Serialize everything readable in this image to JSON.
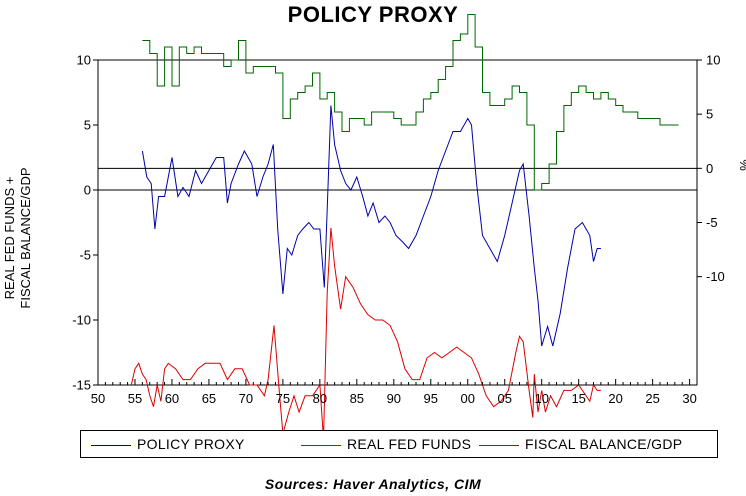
{
  "chart_data": {
    "type": "line",
    "title": "POLICY PROXY",
    "left_axis": {
      "label_lines": [
        "REAL FED FUNDS +",
        "FISCAL BALANCE/GDP"
      ],
      "range": [
        -15,
        10
      ],
      "ticks": [
        {
          "value": 10,
          "label": "10"
        },
        {
          "value": 5,
          "label": "5"
        },
        {
          "value": 0,
          "label": "0"
        },
        {
          "value": -5,
          "label": "-5"
        },
        {
          "value": -10,
          "label": "-10"
        },
        {
          "value": -15,
          "label": "-15"
        }
      ]
    },
    "right_axis": {
      "label": "%",
      "range": [
        -20,
        10
      ],
      "ticks": [
        {
          "value": 10,
          "label": "10"
        },
        {
          "value": 5,
          "label": "5"
        },
        {
          "value": 0,
          "label": "0"
        },
        {
          "value": -5,
          "label": "-5"
        },
        {
          "value": -10,
          "label": "-10"
        }
      ]
    },
    "x_axis": {
      "range": [
        1950,
        2031
      ],
      "ticks": [
        {
          "value": 1950,
          "label": "50"
        },
        {
          "value": 1955,
          "label": "55"
        },
        {
          "value": 1960,
          "label": "60"
        },
        {
          "value": 1965,
          "label": "65"
        },
        {
          "value": 1970,
          "label": "70"
        },
        {
          "value": 1975,
          "label": "75"
        },
        {
          "value": 1980,
          "label": "80"
        },
        {
          "value": 1985,
          "label": "85"
        },
        {
          "value": 1990,
          "label": "90"
        },
        {
          "value": 1995,
          "label": "95"
        },
        {
          "value": 2000,
          "label": "00"
        },
        {
          "value": 2005,
          "label": "05"
        },
        {
          "value": 2010,
          "label": "10"
        },
        {
          "value": 2015,
          "label": "15"
        },
        {
          "value": 2020,
          "label": "20"
        },
        {
          "value": 2025,
          "label": "25"
        },
        {
          "value": 2030,
          "label": "30"
        }
      ]
    },
    "series": [
      {
        "name": "POLICY PROXY",
        "axis": "left",
        "color": "#0000aa",
        "points": [
          [
            1956.0,
            3.0
          ],
          [
            1956.6,
            1.0
          ],
          [
            1957.2,
            0.5
          ],
          [
            1957.7,
            -3.0
          ],
          [
            1958.2,
            -0.5
          ],
          [
            1959.0,
            -0.5
          ],
          [
            1960.0,
            2.5
          ],
          [
            1960.8,
            -0.5
          ],
          [
            1961.5,
            0.2
          ],
          [
            1962.3,
            -0.5
          ],
          [
            1963.2,
            1.5
          ],
          [
            1964.0,
            0.5
          ],
          [
            1965.0,
            1.5
          ],
          [
            1966.0,
            2.5
          ],
          [
            1967.0,
            2.5
          ],
          [
            1967.5,
            -1.0
          ],
          [
            1968.0,
            0.5
          ],
          [
            1969.0,
            2.0
          ],
          [
            1969.8,
            3.0
          ],
          [
            1970.8,
            2.0
          ],
          [
            1971.5,
            -0.5
          ],
          [
            1972.3,
            1.0
          ],
          [
            1973.0,
            2.0
          ],
          [
            1973.7,
            3.5
          ],
          [
            1974.3,
            -3.0
          ],
          [
            1975.0,
            -8.0
          ],
          [
            1975.6,
            -4.5
          ],
          [
            1976.2,
            -5.0
          ],
          [
            1977.0,
            -3.5
          ],
          [
            1977.7,
            -3.0
          ],
          [
            1978.5,
            -2.5
          ],
          [
            1979.2,
            -3.0
          ],
          [
            1980.0,
            -3.0
          ],
          [
            1980.6,
            -7.5
          ],
          [
            1981.0,
            -1.5
          ],
          [
            1981.5,
            6.5
          ],
          [
            1982.0,
            3.5
          ],
          [
            1982.8,
            1.5
          ],
          [
            1983.5,
            0.5
          ],
          [
            1984.2,
            0.0
          ],
          [
            1985.0,
            1.0
          ],
          [
            1985.8,
            -0.5
          ],
          [
            1986.5,
            -2.0
          ],
          [
            1987.2,
            -1.0
          ],
          [
            1988.0,
            -2.5
          ],
          [
            1988.8,
            -2.0
          ],
          [
            1989.5,
            -2.5
          ],
          [
            1990.3,
            -3.5
          ],
          [
            1991.2,
            -4.0
          ],
          [
            1992.0,
            -4.5
          ],
          [
            1993.0,
            -3.5
          ],
          [
            1994.0,
            -2.0
          ],
          [
            1995.0,
            -0.5
          ],
          [
            1996.0,
            1.5
          ],
          [
            1997.0,
            3.0
          ],
          [
            1998.0,
            4.5
          ],
          [
            1999.0,
            4.5
          ],
          [
            2000.0,
            5.5
          ],
          [
            2000.5,
            5.0
          ],
          [
            2001.2,
            0.5
          ],
          [
            2002.0,
            -3.5
          ],
          [
            2003.0,
            -4.5
          ],
          [
            2004.0,
            -5.5
          ],
          [
            2005.0,
            -3.5
          ],
          [
            2006.0,
            -1.0
          ],
          [
            2007.0,
            1.5
          ],
          [
            2007.5,
            2.0
          ],
          [
            2008.3,
            -2.0
          ],
          [
            2009.0,
            -6.0
          ],
          [
            2009.5,
            -8.5
          ],
          [
            2010.0,
            -12.0
          ],
          [
            2010.8,
            -10.5
          ],
          [
            2011.5,
            -12.0
          ],
          [
            2012.5,
            -9.5
          ],
          [
            2013.5,
            -6.0
          ],
          [
            2014.5,
            -3.0
          ],
          [
            2015.5,
            -2.5
          ],
          [
            2016.5,
            -3.5
          ],
          [
            2017.0,
            -5.5
          ],
          [
            2017.5,
            -4.5
          ],
          [
            2018.0,
            -4.5
          ]
        ]
      },
      {
        "name": "REAL FED FUNDS",
        "axis": "right",
        "color": "#dd0000",
        "points": [
          [
            1954.5,
            -20.0
          ],
          [
            1955.0,
            -18.5
          ],
          [
            1955.5,
            -18.0
          ],
          [
            1956.0,
            -19.0
          ],
          [
            1956.5,
            -19.5
          ],
          [
            1957.0,
            -21.0
          ],
          [
            1957.5,
            -22.0
          ],
          [
            1958.0,
            -20.0
          ],
          [
            1958.5,
            -21.5
          ],
          [
            1959.0,
            -18.5
          ],
          [
            1959.5,
            -18.0
          ],
          [
            1960.5,
            -18.5
          ],
          [
            1961.5,
            -19.5
          ],
          [
            1962.5,
            -19.5
          ],
          [
            1963.5,
            -18.5
          ],
          [
            1964.5,
            -18.0
          ],
          [
            1965.5,
            -18.0
          ],
          [
            1966.5,
            -18.0
          ],
          [
            1967.5,
            -19.5
          ],
          [
            1968.5,
            -18.5
          ],
          [
            1969.5,
            -18.5
          ],
          [
            1970.5,
            -20.0
          ],
          [
            1971.5,
            -20.0
          ],
          [
            1972.5,
            -21.0
          ],
          [
            1973.0,
            -19.5
          ],
          [
            1973.8,
            -14.5
          ],
          [
            1974.5,
            -20.5
          ],
          [
            1975.0,
            -24.5
          ],
          [
            1975.8,
            -22.5
          ],
          [
            1976.5,
            -21.0
          ],
          [
            1977.2,
            -22.5
          ],
          [
            1978.0,
            -21.0
          ],
          [
            1979.0,
            -21.0
          ],
          [
            1980.0,
            -20.0
          ],
          [
            1980.5,
            -25.0
          ],
          [
            1981.0,
            -11.5
          ],
          [
            1981.5,
            -5.5
          ],
          [
            1982.0,
            -9.0
          ],
          [
            1982.8,
            -13.0
          ],
          [
            1983.5,
            -10.0
          ],
          [
            1984.5,
            -11.0
          ],
          [
            1985.5,
            -12.5
          ],
          [
            1986.5,
            -13.5
          ],
          [
            1987.5,
            -14.0
          ],
          [
            1988.5,
            -14.0
          ],
          [
            1989.5,
            -14.5
          ],
          [
            1990.5,
            -16.0
          ],
          [
            1991.5,
            -18.5
          ],
          [
            1992.5,
            -19.5
          ],
          [
            1993.5,
            -19.5
          ],
          [
            1994.5,
            -17.5
          ],
          [
            1995.5,
            -17.0
          ],
          [
            1996.5,
            -17.5
          ],
          [
            1997.5,
            -17.0
          ],
          [
            1998.5,
            -16.5
          ],
          [
            1999.5,
            -17.0
          ],
          [
            2000.5,
            -17.5
          ],
          [
            2001.5,
            -19.0
          ],
          [
            2002.5,
            -21.0
          ],
          [
            2003.5,
            -22.0
          ],
          [
            2004.5,
            -21.5
          ],
          [
            2005.5,
            -20.5
          ],
          [
            2006.5,
            -17.0
          ],
          [
            2007.0,
            -15.5
          ],
          [
            2007.5,
            -16.0
          ],
          [
            2008.3,
            -20.5
          ],
          [
            2008.8,
            -23.0
          ],
          [
            2009.0,
            -19.0
          ],
          [
            2009.5,
            -22.5
          ],
          [
            2010.0,
            -20.5
          ],
          [
            2010.5,
            -22.5
          ],
          [
            2011.2,
            -21.0
          ],
          [
            2012.0,
            -22.0
          ],
          [
            2013.0,
            -20.5
          ],
          [
            2014.0,
            -20.5
          ],
          [
            2015.0,
            -20.0
          ],
          [
            2015.5,
            -20.5
          ],
          [
            2016.5,
            -21.5
          ],
          [
            2017.0,
            -20.0
          ],
          [
            2017.5,
            -20.5
          ],
          [
            2018.0,
            -20.5
          ]
        ]
      },
      {
        "name": "FISCAL BALANCE/GDP",
        "axis": "left",
        "color": "#006600",
        "steps": [
          [
            1956,
            11.5
          ],
          [
            1957,
            10.5
          ],
          [
            1958,
            8.0
          ],
          [
            1959,
            11.0
          ],
          [
            1960,
            8.0
          ],
          [
            1961,
            11.0
          ],
          [
            1962,
            10.5
          ],
          [
            1963,
            11.0
          ],
          [
            1964,
            10.5
          ],
          [
            1965,
            10.5
          ],
          [
            1966,
            10.5
          ],
          [
            1967,
            9.5
          ],
          [
            1968,
            10.0
          ],
          [
            1969,
            11.5
          ],
          [
            1970,
            9.0
          ],
          [
            1971,
            9.5
          ],
          [
            1972,
            9.5
          ],
          [
            1973,
            9.5
          ],
          [
            1974,
            9.0
          ],
          [
            1975,
            5.5
          ],
          [
            1976,
            7.0
          ],
          [
            1977,
            7.5
          ],
          [
            1978,
            8.0
          ],
          [
            1979,
            9.0
          ],
          [
            1980,
            7.0
          ],
          [
            1981,
            7.5
          ],
          [
            1982,
            6.0
          ],
          [
            1983,
            4.5
          ],
          [
            1984,
            5.5
          ],
          [
            1985,
            5.5
          ],
          [
            1986,
            5.0
          ],
          [
            1987,
            6.0
          ],
          [
            1988,
            6.0
          ],
          [
            1989,
            6.0
          ],
          [
            1990,
            5.5
          ],
          [
            1991,
            5.0
          ],
          [
            1992,
            5.0
          ],
          [
            1993,
            6.0
          ],
          [
            1994,
            7.0
          ],
          [
            1995,
            7.5
          ],
          [
            1996,
            8.5
          ],
          [
            1997,
            9.5
          ],
          [
            1998,
            11.5
          ],
          [
            1999,
            12.0
          ],
          [
            2000,
            13.5
          ],
          [
            2001,
            11.0
          ],
          [
            2002,
            7.5
          ],
          [
            2003,
            6.5
          ],
          [
            2004,
            6.5
          ],
          [
            2005,
            7.0
          ],
          [
            2006,
            8.0
          ],
          [
            2007,
            7.5
          ],
          [
            2008,
            5.0
          ],
          [
            2009,
            0.0
          ],
          [
            2010,
            0.5
          ],
          [
            2011,
            2.0
          ],
          [
            2012,
            4.5
          ],
          [
            2013,
            6.5
          ],
          [
            2014,
            7.5
          ],
          [
            2015,
            8.0
          ],
          [
            2016,
            7.5
          ],
          [
            2017,
            7.0
          ],
          [
            2018,
            7.5
          ],
          [
            2019,
            7.0
          ],
          [
            2020,
            6.5
          ],
          [
            2021,
            6.0
          ],
          [
            2022,
            6.0
          ],
          [
            2023,
            5.5
          ],
          [
            2024,
            5.5
          ],
          [
            2025,
            5.5
          ],
          [
            2026,
            5.0
          ],
          [
            2027,
            5.0
          ],
          [
            2028,
            5.0
          ]
        ]
      }
    ]
  },
  "legend": {
    "items": [
      {
        "label": "POLICY PROXY",
        "color": "#0000aa"
      },
      {
        "label": "REAL FED FUNDS",
        "color": "#dd0000"
      },
      {
        "label": "FISCAL BALANCE/GDP",
        "color": "#006600"
      }
    ]
  },
  "source_note": "Sources:  Haver Analytics, CIM"
}
